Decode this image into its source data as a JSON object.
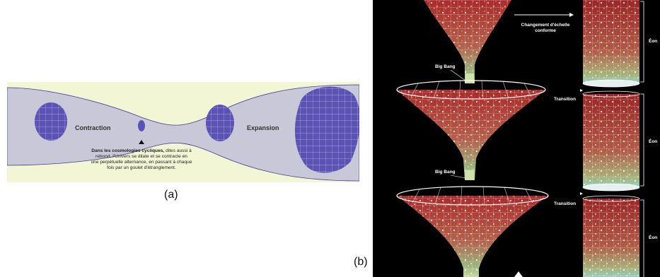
{
  "panel_a": {
    "contraction": "Contraction",
    "expansion": "Expansion",
    "caption_bold": "Dans les cosmologies cycliques,",
    "caption_lines": [
      " dites aussi à",
      "rebond, l'Univers se dilate et se contracte en",
      "une perpétuelle alternance, en passant à chaque",
      "fois par un goulet d'étranglement."
    ],
    "colors": {
      "band": "#c9c8d9",
      "bg": "#f3f6d5",
      "blob": "#5b53b4"
    }
  },
  "panel_b": {
    "changement": [
      "Changement d'échelle",
      "conforme"
    ],
    "big_bang_1": "Big Bang",
    "big_bang_2": "Big Bang",
    "transition_1": "Transition",
    "transition_2": "Transition",
    "eon_1": "Éon",
    "eon_2": "Éon",
    "eon_3": "Éon",
    "colors": {
      "bg": "#000000",
      "cone": "#a92b2b",
      "neck": "#9bb07a"
    }
  },
  "captions": {
    "a": "(a)",
    "b": "(b)"
  }
}
